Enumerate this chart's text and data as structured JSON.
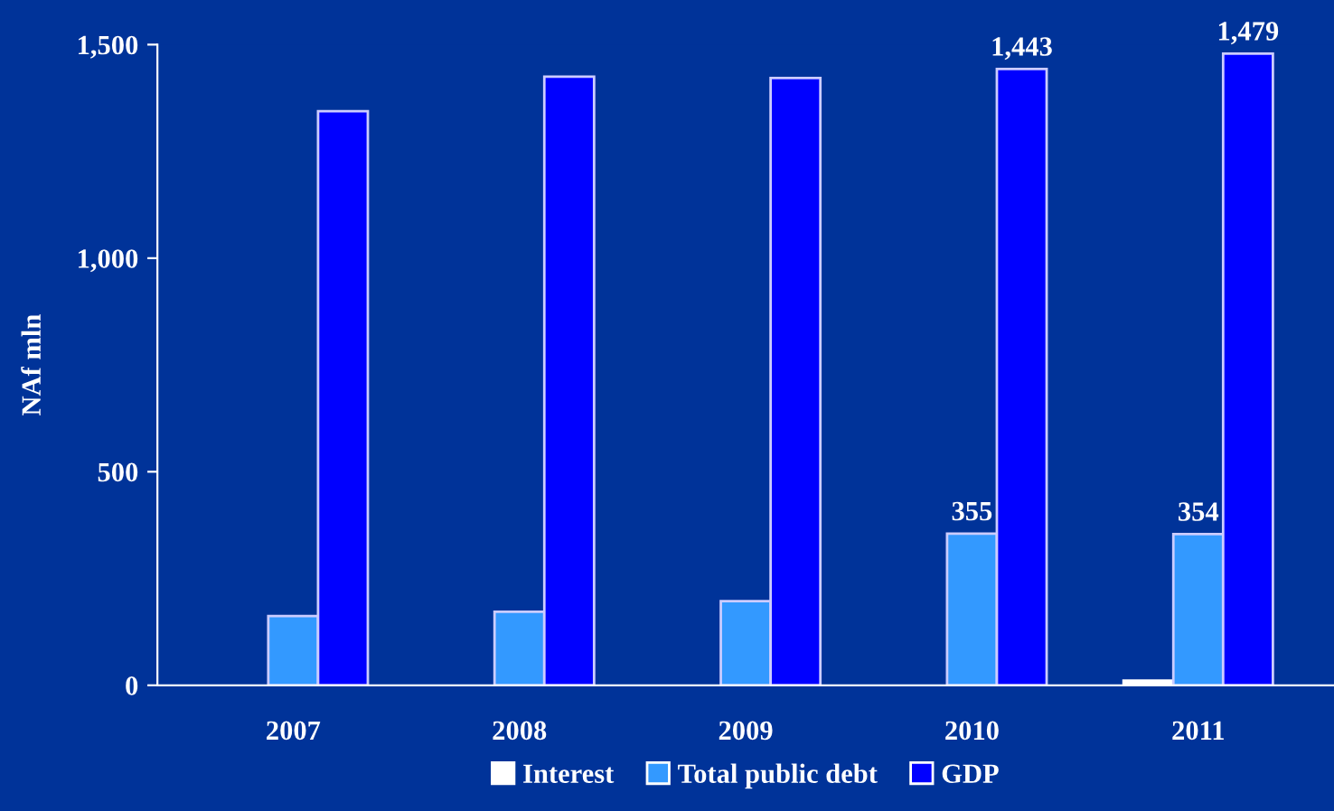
{
  "chart_data": {
    "type": "bar",
    "ylabel": "NAf mln",
    "categories": [
      "2007",
      "2008",
      "2009",
      "2010",
      "2011"
    ],
    "series": [
      {
        "name": "Interest",
        "color": "#ffffff",
        "values": [
          null,
          null,
          null,
          null,
          11
        ]
      },
      {
        "name": "Total public debt",
        "color": "#3399ff",
        "values": [
          162,
          172,
          197,
          355,
          354
        ],
        "value_labels": [
          null,
          null,
          null,
          "355",
          "354"
        ]
      },
      {
        "name": "GDP",
        "color": "#0000ff",
        "values": [
          1344,
          1425,
          1422,
          1443,
          1479
        ],
        "value_labels": [
          null,
          null,
          null,
          "1,443",
          "1,479"
        ]
      }
    ],
    "ylim": [
      0,
      1500
    ],
    "yticks": [
      {
        "value": 0,
        "label": "0"
      },
      {
        "value": 500,
        "label": "500"
      },
      {
        "value": 1000,
        "label": "1,000"
      },
      {
        "value": 1500,
        "label": "1,500"
      }
    ],
    "grid": false,
    "legend": "bottom"
  }
}
